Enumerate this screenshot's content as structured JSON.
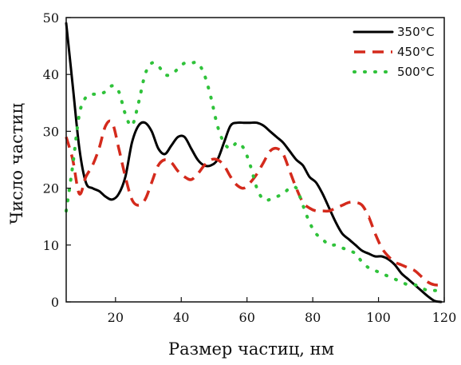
{
  "chart_data": {
    "type": "line",
    "xlabel": "Размер частиц, нм",
    "ylabel": "Число частиц",
    "xlim": [
      5,
      120
    ],
    "ylim": [
      0,
      50
    ],
    "xticks": [
      20,
      40,
      60,
      80,
      100,
      120
    ],
    "yticks": [
      0,
      10,
      20,
      30,
      40,
      50
    ],
    "xtick_labels": [
      "20",
      "40",
      "60",
      "80",
      "100",
      "120"
    ],
    "ytick_labels": [
      "0",
      "10",
      "20",
      "30",
      "40",
      "50"
    ],
    "grid": false,
    "legend_position": "top-right",
    "series": [
      {
        "name": "350°C",
        "color": "#000000",
        "style": "solid",
        "x": [
          5,
          7,
          9,
          11,
          13,
          15,
          17,
          19,
          21,
          23,
          25,
          27,
          29,
          31,
          33,
          35,
          37,
          39,
          41,
          43,
          45,
          47,
          49,
          51,
          53,
          55,
          57,
          59,
          61,
          63,
          65,
          67,
          69,
          71,
          73,
          75,
          77,
          79,
          81,
          83,
          85,
          87,
          89,
          91,
          93,
          95,
          97,
          99,
          101,
          103,
          105,
          107,
          109,
          111,
          113,
          115,
          117,
          119
        ],
        "y": [
          49,
          38,
          27,
          21,
          20,
          19.5,
          18.5,
          18,
          19,
          22,
          28,
          31,
          31.5,
          30,
          27,
          26,
          27.5,
          29,
          29,
          27,
          25,
          24,
          24,
          25,
          28,
          31,
          31.5,
          31.5,
          31.5,
          31.5,
          31,
          30,
          29,
          28,
          26.5,
          25,
          24,
          22,
          21,
          19,
          16.5,
          14,
          12,
          11,
          10,
          9,
          8.5,
          8,
          8,
          7.5,
          6.5,
          5,
          4,
          3,
          2,
          1,
          0.2,
          0
        ]
      },
      {
        "name": "450°C",
        "color": "#d42a1c",
        "style": "dashed",
        "x": [
          5,
          7,
          9,
          11,
          13,
          15,
          17,
          19,
          21,
          23,
          25,
          27,
          29,
          31,
          33,
          35,
          37,
          39,
          41,
          43,
          45,
          47,
          49,
          51,
          53,
          55,
          57,
          59,
          61,
          63,
          65,
          67,
          69,
          71,
          73,
          75,
          77,
          79,
          81,
          83,
          85,
          87,
          89,
          91,
          93,
          95,
          97,
          99,
          101,
          103,
          105,
          107,
          109,
          111,
          113,
          115,
          117,
          119
        ],
        "y": [
          29,
          25,
          19,
          22,
          24,
          27,
          31,
          31.5,
          27,
          22,
          18,
          17,
          18,
          21,
          24,
          25,
          24.5,
          23,
          22,
          21.5,
          22.5,
          24,
          25,
          25,
          24,
          22,
          20.5,
          20,
          21,
          22.5,
          24.5,
          26.5,
          27,
          26,
          23,
          20,
          17.5,
          16.5,
          16,
          16,
          16,
          16.5,
          17,
          17.5,
          17.5,
          17,
          15,
          12,
          9.5,
          8,
          7,
          6.5,
          6,
          5.5,
          4.5,
          3.5,
          3,
          3
        ]
      },
      {
        "name": "500°C",
        "color": "#2fc23a",
        "style": "dotted",
        "x": [
          5,
          7,
          9,
          11,
          13,
          15,
          17,
          19,
          21,
          23,
          25,
          27,
          29,
          31,
          33,
          35,
          37,
          39,
          41,
          43,
          45,
          47,
          49,
          51,
          53,
          55,
          57,
          59,
          61,
          63,
          65,
          67,
          69,
          71,
          73,
          75,
          77,
          79,
          81,
          83,
          85,
          87,
          89,
          91,
          93,
          95,
          97,
          99,
          101,
          103,
          105,
          107,
          109,
          111,
          113,
          115,
          117,
          119
        ],
        "y": [
          16,
          24,
          33,
          36,
          36.5,
          36.5,
          37,
          38,
          37,
          33,
          31,
          35,
          40,
          42,
          41.5,
          40,
          40,
          41,
          42,
          42,
          42,
          40,
          36,
          31,
          28,
          27,
          28,
          27,
          24,
          20,
          18,
          18,
          18.5,
          19,
          20,
          20,
          17,
          14,
          12,
          11,
          10,
          10,
          9.5,
          9,
          8.5,
          7,
          6,
          5.5,
          5,
          4.5,
          4,
          3.5,
          3,
          3,
          2.5,
          2,
          2,
          2
        ]
      }
    ]
  }
}
